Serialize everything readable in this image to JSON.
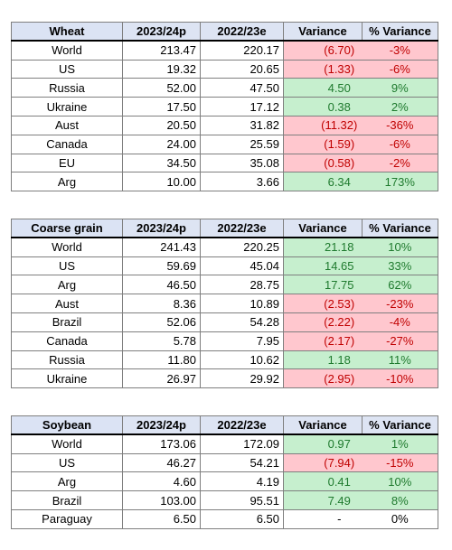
{
  "tables": [
    {
      "header": {
        "commodity": "Wheat",
        "col1": "2023/24p",
        "col2": "2022/23e",
        "col3": "Variance",
        "col4": "% Variance"
      },
      "rows": [
        {
          "country": "World",
          "v1": "213.47",
          "v2": "220.17",
          "var": "(6.70)",
          "pct": "-3%",
          "sign": "neg"
        },
        {
          "country": "US",
          "v1": "19.32",
          "v2": "20.65",
          "var": "(1.33)",
          "pct": "-6%",
          "sign": "neg"
        },
        {
          "country": "Russia",
          "v1": "52.00",
          "v2": "47.50",
          "var": "4.50",
          "pct": "9%",
          "sign": "pos"
        },
        {
          "country": "Ukraine",
          "v1": "17.50",
          "v2": "17.12",
          "var": "0.38",
          "pct": "2%",
          "sign": "pos"
        },
        {
          "country": "Aust",
          "v1": "20.50",
          "v2": "31.82",
          "var": "(11.32)",
          "pct": "-36%",
          "sign": "neg"
        },
        {
          "country": "Canada",
          "v1": "24.00",
          "v2": "25.59",
          "var": "(1.59)",
          "pct": "-6%",
          "sign": "neg"
        },
        {
          "country": "EU",
          "v1": "34.50",
          "v2": "35.08",
          "var": "(0.58)",
          "pct": "-2%",
          "sign": "neg"
        },
        {
          "country": "Arg",
          "v1": "10.00",
          "v2": "3.66",
          "var": "6.34",
          "pct": "173%",
          "sign": "pos"
        }
      ]
    },
    {
      "header": {
        "commodity": "Coarse grain",
        "col1": "2023/24p",
        "col2": "2022/23e",
        "col3": "Variance",
        "col4": "% Variance"
      },
      "rows": [
        {
          "country": "World",
          "v1": "241.43",
          "v2": "220.25",
          "var": "21.18",
          "pct": "10%",
          "sign": "pos"
        },
        {
          "country": "US",
          "v1": "59.69",
          "v2": "45.04",
          "var": "14.65",
          "pct": "33%",
          "sign": "pos"
        },
        {
          "country": "Arg",
          "v1": "46.50",
          "v2": "28.75",
          "var": "17.75",
          "pct": "62%",
          "sign": "pos"
        },
        {
          "country": "Aust",
          "v1": "8.36",
          "v2": "10.89",
          "var": "(2.53)",
          "pct": "-23%",
          "sign": "neg"
        },
        {
          "country": "Brazil",
          "v1": "52.06",
          "v2": "54.28",
          "var": "(2.22)",
          "pct": "-4%",
          "sign": "neg"
        },
        {
          "country": "Canada",
          "v1": "5.78",
          "v2": "7.95",
          "var": "(2.17)",
          "pct": "-27%",
          "sign": "neg"
        },
        {
          "country": "Russia",
          "v1": "11.80",
          "v2": "10.62",
          "var": "1.18",
          "pct": "11%",
          "sign": "pos"
        },
        {
          "country": "Ukraine",
          "v1": "26.97",
          "v2": "29.92",
          "var": "(2.95)",
          "pct": "-10%",
          "sign": "neg"
        }
      ]
    },
    {
      "header": {
        "commodity": "Soybean",
        "col1": "2023/24p",
        "col2": "2022/23e",
        "col3": "Variance",
        "col4": "% Variance"
      },
      "rows": [
        {
          "country": "World",
          "v1": "173.06",
          "v2": "172.09",
          "var": "0.97",
          "pct": "1%",
          "sign": "pos"
        },
        {
          "country": "US",
          "v1": "46.27",
          "v2": "54.21",
          "var": "(7.94)",
          "pct": "-15%",
          "sign": "neg"
        },
        {
          "country": "Arg",
          "v1": "4.60",
          "v2": "4.19",
          "var": "0.41",
          "pct": "10%",
          "sign": "pos"
        },
        {
          "country": "Brazil",
          "v1": "103.00",
          "v2": "95.51",
          "var": "7.49",
          "pct": "8%",
          "sign": "pos"
        },
        {
          "country": "Paraguay",
          "v1": "6.50",
          "v2": "6.50",
          "var": "-",
          "pct": "0%",
          "sign": "neu"
        }
      ]
    }
  ],
  "colors": {
    "positive_fill": "#c6efce",
    "positive_text": "#1f7a2e",
    "negative_fill": "#ffc7ce",
    "negative_text": "#c00000",
    "header_fill": "#dde4f3"
  }
}
